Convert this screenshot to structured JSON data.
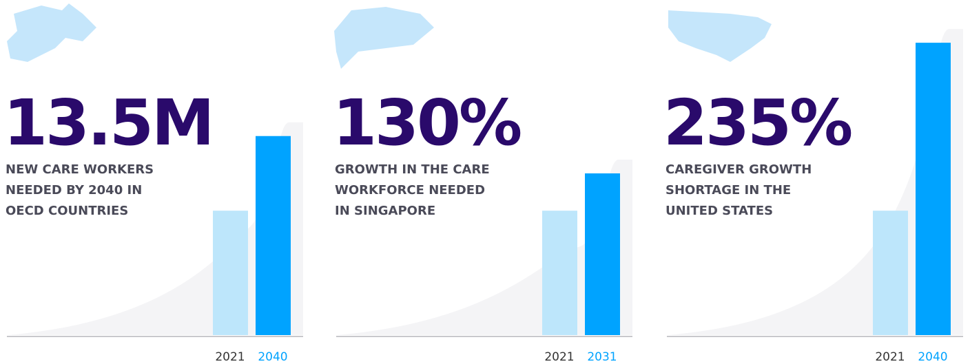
{
  "chart_data": [
    {
      "type": "bar",
      "title": "13.5M",
      "description": [
        "NEW CARE WORKERS",
        "NEEDED BY 2040 IN",
        "OECD COUNTRIES"
      ],
      "categories": [
        "2021",
        "2040"
      ],
      "values": [
        100,
        160
      ],
      "colors": [
        "#bde6fb",
        "#00a3ff"
      ],
      "ylim": [
        0,
        250
      ]
    },
    {
      "type": "bar",
      "title": "130%",
      "description": [
        "GROWTH IN THE CARE",
        "WORKFORCE NEEDED",
        "IN SINGAPORE"
      ],
      "categories": [
        "2021",
        "2031"
      ],
      "values": [
        100,
        130
      ],
      "colors": [
        "#bde6fb",
        "#00a3ff"
      ],
      "ylim": [
        0,
        250
      ]
    },
    {
      "type": "bar",
      "title": "235%",
      "description": [
        "CAREGIVER GROWTH",
        "SHORTAGE IN THE",
        "UNITED STATES"
      ],
      "categories": [
        "2021",
        "2040"
      ],
      "values": [
        100,
        235
      ],
      "colors": [
        "#bde6fb",
        "#00a3ff"
      ],
      "ylim": [
        0,
        250
      ]
    }
  ]
}
